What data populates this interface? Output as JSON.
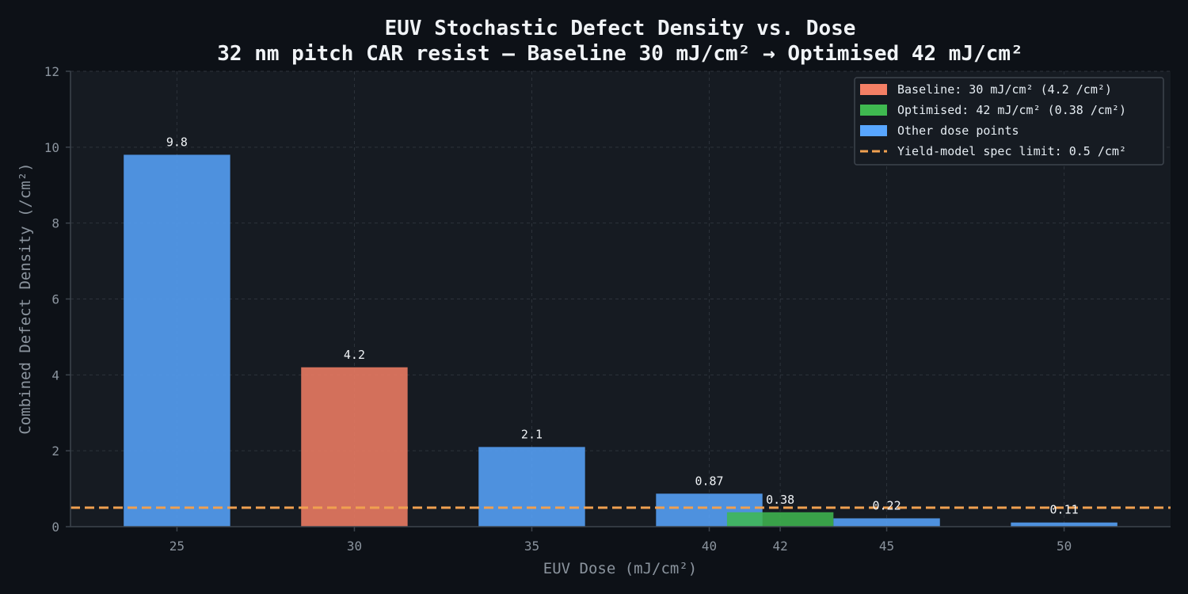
{
  "chart_data": {
    "type": "bar",
    "title": "EUV Stochastic Defect Density vs. Dose",
    "subtitle": "32 nm pitch CAR resist — Baseline 30 mJ/cm²  →  Optimised 42 mJ/cm²",
    "xlabel": "EUV Dose (mJ/cm²)",
    "ylabel": "Combined Defect Density (/cm²)",
    "xlim": [
      22,
      53
    ],
    "ylim": [
      0,
      12
    ],
    "x_ticks": [
      25,
      30,
      35,
      40,
      42,
      45,
      50
    ],
    "y_ticks": [
      0,
      2,
      4,
      6,
      8,
      10,
      12
    ],
    "bar_width": 3,
    "grid": true,
    "legend_position": "top-right",
    "bars": [
      {
        "x": 25,
        "value": 9.8,
        "label": "9.8",
        "group": "other"
      },
      {
        "x": 30,
        "value": 4.2,
        "label": "4.2",
        "group": "baseline"
      },
      {
        "x": 35,
        "value": 2.1,
        "label": "2.1",
        "group": "other"
      },
      {
        "x": 40,
        "value": 0.87,
        "label": "0.87",
        "group": "other"
      },
      {
        "x": 42,
        "value": 0.38,
        "label": "0.38",
        "group": "optimised"
      },
      {
        "x": 45,
        "value": 0.22,
        "label": "0.22",
        "group": "other"
      },
      {
        "x": 50,
        "value": 0.11,
        "label": "0.11",
        "group": "other"
      }
    ],
    "spec_limit": {
      "value": 0.5,
      "label": "Yield-model spec limit: 0.5 /cm²"
    },
    "legend": [
      {
        "key": "baseline",
        "label": "Baseline: 30 mJ/cm²  (4.2 /cm²)"
      },
      {
        "key": "optimised",
        "label": "Optimised: 42 mJ/cm²  (0.38 /cm²)"
      },
      {
        "key": "other",
        "label": "Other dose points"
      },
      {
        "key": "spec",
        "label": "Yield-model spec limit: 0.5 /cm²"
      }
    ],
    "colors": {
      "baseline": "#f47f65",
      "optimised": "#3fb950",
      "other": "#58a6ff",
      "spec": "#f0a050",
      "background": "#0d1117",
      "plot_background": "#161b22",
      "grid": "#2d333b",
      "axis": "#3d444d"
    }
  }
}
